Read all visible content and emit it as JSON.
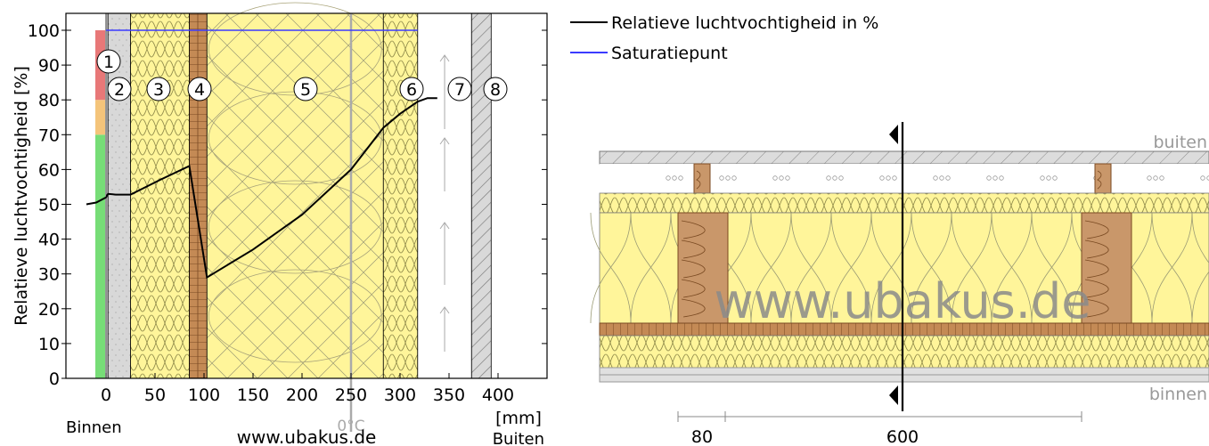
{
  "chart_data": {
    "type": "line",
    "ylabel": "Relatieve luchtvochtigheid [%]",
    "x_unit": "[mm]",
    "inside_label": "Binnen",
    "outside_label": "Buiten",
    "watermark": "www.ubakus.de",
    "zero_c_label": "0°C",
    "zero_c_x": 250,
    "xlim": [
      -20,
      420
    ],
    "ylim": [
      0,
      105
    ],
    "x_ticks": [
      0,
      50,
      100,
      150,
      200,
      250,
      300,
      350,
      400
    ],
    "y_ticks": [
      0,
      10,
      20,
      30,
      40,
      50,
      60,
      70,
      80,
      90,
      100
    ],
    "layers": [
      {
        "number": "1",
        "x0": 0,
        "x1": 2
      },
      {
        "number": "2",
        "x0": 2,
        "x1": 25
      },
      {
        "number": "3",
        "x0": 25,
        "x1": 85
      },
      {
        "number": "4",
        "x0": 85,
        "x1": 103
      },
      {
        "number": "5",
        "x0": 103,
        "x1": 283
      },
      {
        "number": "6",
        "x0": 283,
        "x1": 318
      },
      {
        "number": "7",
        "x0": 318,
        "x1": 373
      },
      {
        "number": "8",
        "x0": 373,
        "x1": 393
      }
    ],
    "legend": [
      {
        "label": "Relatieve luchtvochtigheid in %",
        "color": "#000000"
      },
      {
        "label": "Saturatiepunt",
        "color": "#3b3bff"
      }
    ],
    "series": [
      {
        "name": "Relatieve luchtvochtigheid in %",
        "color": "#000000",
        "x": [
          -20,
          -10,
          0,
          2,
          10,
          25,
          55,
          85,
          103,
          150,
          200,
          250,
          283,
          300,
          318,
          328,
          338
        ],
        "y": [
          50,
          50.5,
          52,
          53,
          52.8,
          52.8,
          57,
          61,
          29,
          37,
          47,
          60,
          72,
          76,
          79.5,
          80.5,
          80.5
        ]
      },
      {
        "name": "Saturatiepunt",
        "color": "#3b3bff",
        "x": [
          0,
          318
        ],
        "y": [
          100,
          100
        ]
      }
    ],
    "comfort_bar": [
      {
        "from": 0,
        "to": 70,
        "color": "#77dd77"
      },
      {
        "from": 70,
        "to": 80,
        "color": "#f4c47a"
      },
      {
        "from": 80,
        "to": 100,
        "color": "#e87878"
      }
    ]
  },
  "section": {
    "outside_label": "buiten",
    "inside_label": "binnen",
    "watermark": "www.ubakus.de",
    "dim_1": "80",
    "dim_2": "600"
  }
}
